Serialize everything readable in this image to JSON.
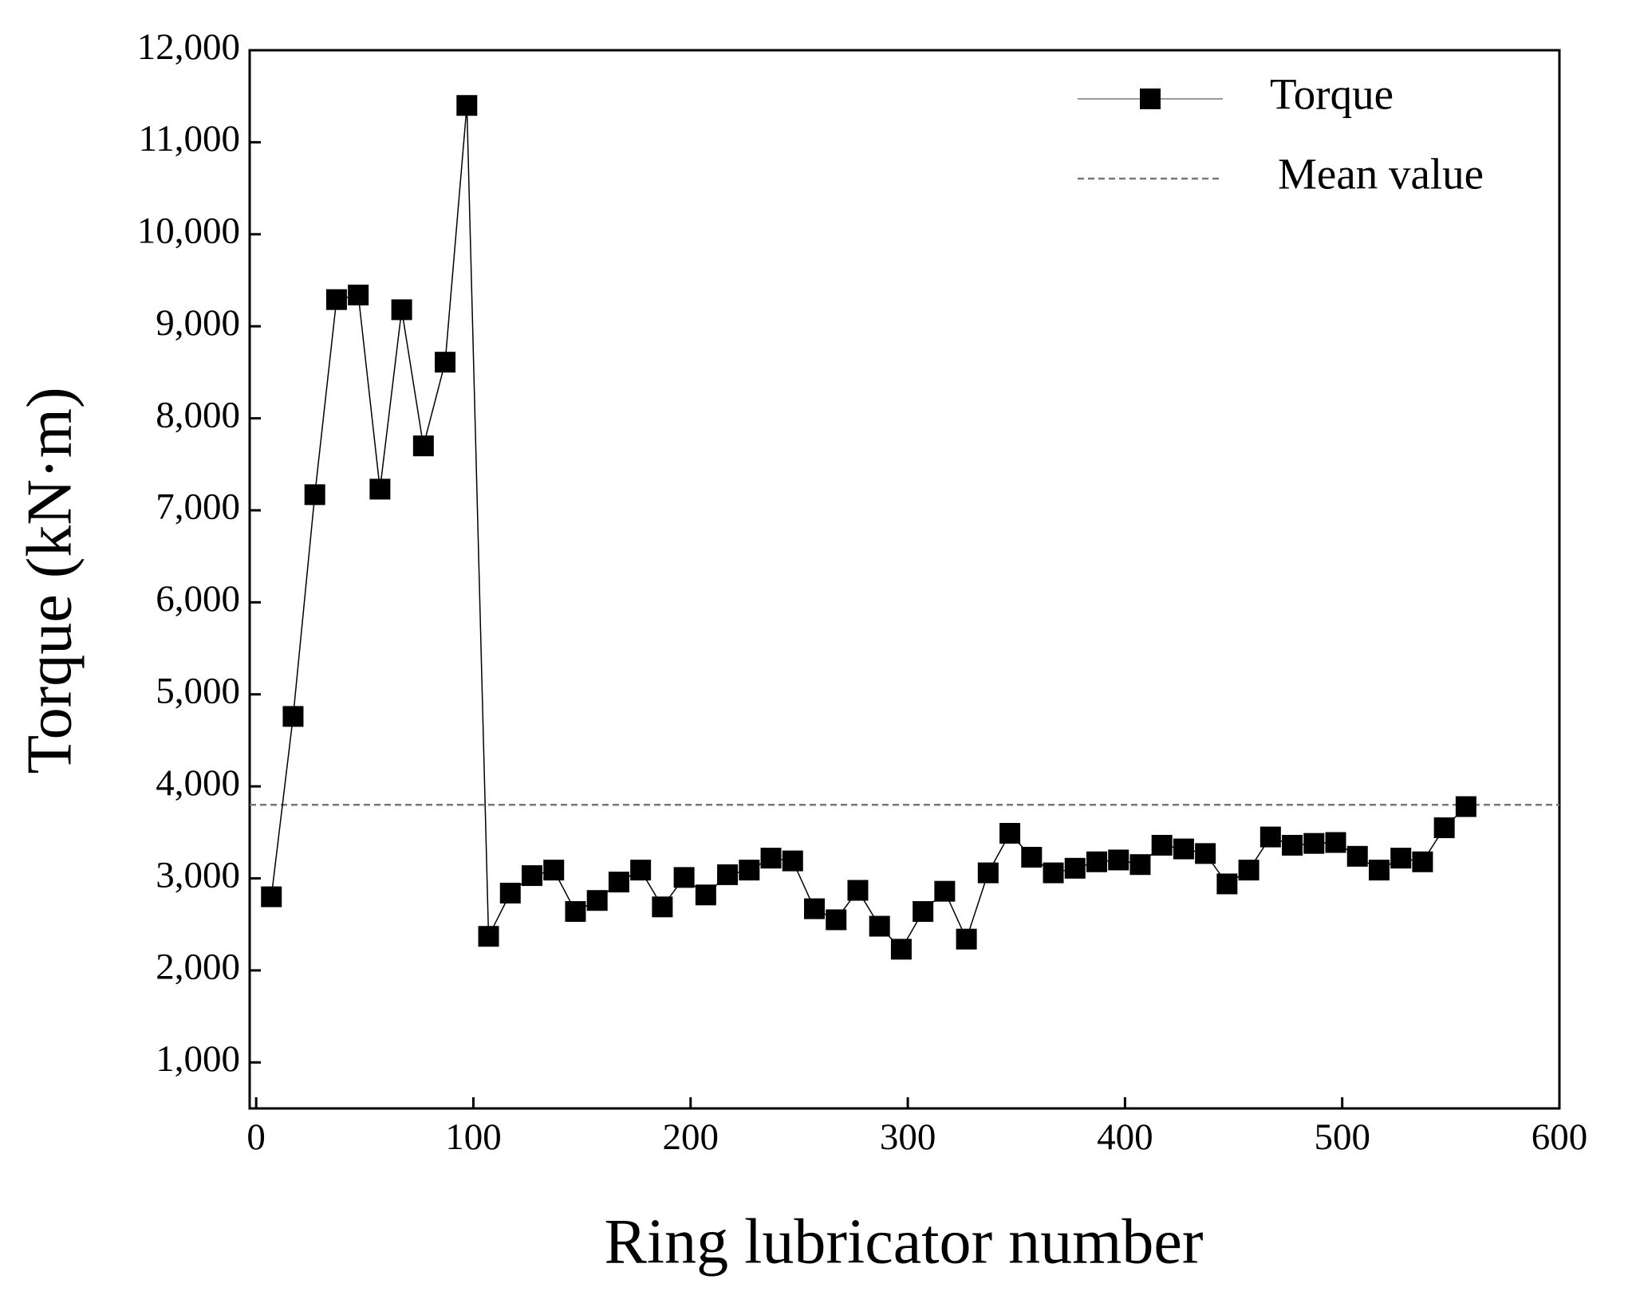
{
  "chart_data": {
    "type": "line",
    "xlabel": "Ring lubricator number",
    "ylabel": "Torque (kN·m)",
    "x": [
      7,
      17,
      27,
      37,
      47,
      57,
      67,
      77,
      87,
      97,
      107,
      117,
      127,
      137,
      147,
      157,
      167,
      177,
      187,
      197,
      207,
      217,
      227,
      237,
      247,
      257,
      267,
      277,
      287,
      297,
      307,
      317,
      327,
      337,
      347,
      357,
      367,
      377,
      387,
      397,
      407,
      417,
      427,
      437,
      447,
      457,
      467,
      477,
      487,
      497,
      507,
      517,
      527,
      537,
      547,
      557
    ],
    "series": [
      {
        "name": "Torque",
        "color": "#000000",
        "values": [
          2800,
          4760,
          7170,
          9290,
          9340,
          7230,
          9180,
          7700,
          8610,
          11400,
          2370,
          2840,
          3030,
          3090,
          2640,
          2760,
          2960,
          3090,
          2690,
          3010,
          2820,
          3040,
          3090,
          3220,
          3190,
          2670,
          2550,
          2870,
          2480,
          2230,
          2640,
          2860,
          2340,
          3060,
          3490,
          3230,
          3060,
          3110,
          3180,
          3200,
          3150,
          3360,
          3320,
          3270,
          2940,
          3090,
          3450,
          3360,
          3380,
          3390,
          3240,
          3090,
          3220,
          3180,
          3550,
          3780
        ]
      }
    ],
    "reference_lines": [
      {
        "name": "Mean value",
        "color": "#777777",
        "value": 3800
      }
    ],
    "xlim": [
      -3,
      600
    ],
    "ylim": [
      500,
      12000
    ],
    "xticks": [
      0,
      100,
      200,
      300,
      400,
      500,
      600
    ],
    "yticks": [
      {
        "value": 1000,
        "label": "1,000"
      },
      {
        "value": 2000,
        "label": "2,000"
      },
      {
        "value": 3000,
        "label": "3,000"
      },
      {
        "value": 4000,
        "label": "4,000"
      },
      {
        "value": 5000,
        "label": "5,000"
      },
      {
        "value": 6000,
        "label": "6,000"
      },
      {
        "value": 7000,
        "label": "7,000"
      },
      {
        "value": 8000,
        "label": "8,000"
      },
      {
        "value": 9000,
        "label": "9,000"
      },
      {
        "value": 10000,
        "label": "10,000"
      },
      {
        "value": 11000,
        "label": "11,000"
      },
      {
        "value": 12000,
        "label": "12,000"
      }
    ],
    "legend": "upper right",
    "grid": false
  }
}
